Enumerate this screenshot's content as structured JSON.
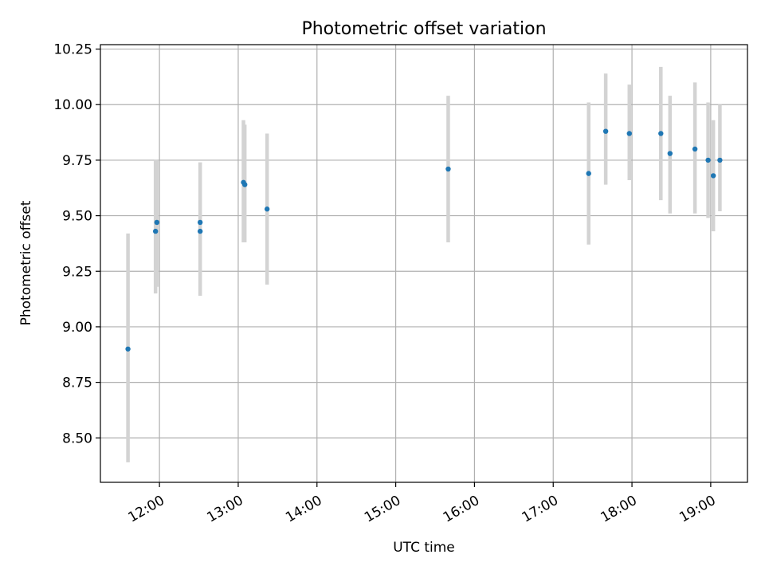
{
  "chart_data": {
    "type": "scatter",
    "title": "Photometric offset variation",
    "xlabel": "UTC time",
    "ylabel": "Photometric offset",
    "xlim": [
      "11:15",
      "19:28"
    ],
    "ylim": [
      8.3,
      10.27
    ],
    "grid": true,
    "x_ticks": [
      "12:00",
      "13:00",
      "14:00",
      "15:00",
      "16:00",
      "17:00",
      "18:00",
      "19:00"
    ],
    "y_ticks": [
      "8.50",
      "8.75",
      "9.00",
      "9.25",
      "9.50",
      "9.75",
      "10.00",
      "10.25"
    ],
    "colors": {
      "points": "#1f77b4",
      "errorbars": "#d3d3d3",
      "grid": "#b0b0b0"
    },
    "series": [
      {
        "points": [
          {
            "x": "11:36",
            "y": 8.9,
            "ylow": 8.39,
            "yhigh": 9.42
          },
          {
            "x": "11:57",
            "y": 9.43,
            "ylow": 9.15,
            "yhigh": 9.75
          },
          {
            "x": "11:58",
            "y": 9.47,
            "ylow": 9.18,
            "yhigh": 9.75
          },
          {
            "x": "12:31",
            "y": 9.43,
            "ylow": 9.14,
            "yhigh": 9.74
          },
          {
            "x": "12:31",
            "y": 9.47,
            "ylow": 9.14,
            "yhigh": 9.74
          },
          {
            "x": "13:04",
            "y": 9.65,
            "ylow": 9.38,
            "yhigh": 9.93
          },
          {
            "x": "13:05",
            "y": 9.64,
            "ylow": 9.38,
            "yhigh": 9.91
          },
          {
            "x": "13:22",
            "y": 9.53,
            "ylow": 9.19,
            "yhigh": 9.87
          },
          {
            "x": "15:40",
            "y": 9.71,
            "ylow": 9.38,
            "yhigh": 10.04
          },
          {
            "x": "17:27",
            "y": 9.69,
            "ylow": 9.37,
            "yhigh": 10.01
          },
          {
            "x": "17:40",
            "y": 9.88,
            "ylow": 9.64,
            "yhigh": 10.14
          },
          {
            "x": "17:58",
            "y": 9.87,
            "ylow": 9.66,
            "yhigh": 10.09
          },
          {
            "x": "18:22",
            "y": 9.87,
            "ylow": 9.57,
            "yhigh": 10.17
          },
          {
            "x": "18:29",
            "y": 9.78,
            "ylow": 9.51,
            "yhigh": 10.04
          },
          {
            "x": "18:48",
            "y": 9.8,
            "ylow": 9.51,
            "yhigh": 10.1
          },
          {
            "x": "18:58",
            "y": 9.75,
            "ylow": 9.49,
            "yhigh": 10.01
          },
          {
            "x": "19:02",
            "y": 9.68,
            "ylow": 9.43,
            "yhigh": 9.93
          },
          {
            "x": "19:07",
            "y": 9.75,
            "ylow": 9.52,
            "yhigh": 10.0
          }
        ]
      }
    ]
  }
}
